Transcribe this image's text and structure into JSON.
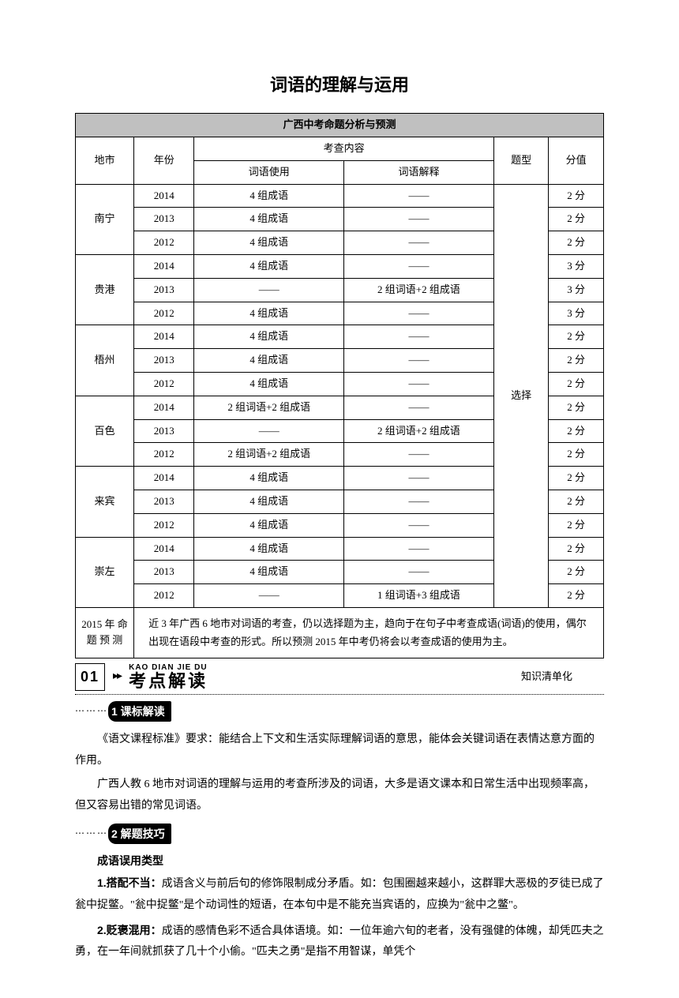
{
  "page_title": "词语的理解与运用",
  "table": {
    "caption": "广西中考命题分析与预测",
    "col_headers": {
      "city": "地市",
      "year": "年份",
      "content": "考查内容",
      "usage": "词语使用",
      "explain": "词语解释",
      "qtype": "题型",
      "score": "分值"
    },
    "qtype_merged": "选择",
    "cities": [
      {
        "name": "南宁",
        "rows": [
          {
            "year": "2014",
            "usage": "4 组成语",
            "explain": "——",
            "score": "2 分"
          },
          {
            "year": "2013",
            "usage": "4 组成语",
            "explain": "——",
            "score": "2 分"
          },
          {
            "year": "2012",
            "usage": "4 组成语",
            "explain": "——",
            "score": "2 分"
          }
        ]
      },
      {
        "name": "贵港",
        "rows": [
          {
            "year": "2014",
            "usage": "4 组成语",
            "explain": "——",
            "score": "3 分"
          },
          {
            "year": "2013",
            "usage": "——",
            "explain": "2 组词语+2 组成语",
            "score": "3 分"
          },
          {
            "year": "2012",
            "usage": "4 组成语",
            "explain": "——",
            "score": "3 分"
          }
        ]
      },
      {
        "name": "梧州",
        "rows": [
          {
            "year": "2014",
            "usage": "4 组成语",
            "explain": "——",
            "score": "2 分"
          },
          {
            "year": "2013",
            "usage": "4 组成语",
            "explain": "——",
            "score": "2 分"
          },
          {
            "year": "2012",
            "usage": "4 组成语",
            "explain": "——",
            "score": "2 分"
          }
        ]
      },
      {
        "name": "百色",
        "rows": [
          {
            "year": "2014",
            "usage": "2 组词语+2 组成语",
            "explain": "——",
            "score": "2 分"
          },
          {
            "year": "2013",
            "usage": "——",
            "explain": "2 组词语+2 组成语",
            "score": "2 分"
          },
          {
            "year": "2012",
            "usage": "2 组词语+2 组成语",
            "explain": "——",
            "score": "2 分"
          }
        ]
      },
      {
        "name": "来宾",
        "rows": [
          {
            "year": "2014",
            "usage": "4 组成语",
            "explain": "——",
            "score": "2 分"
          },
          {
            "year": "2013",
            "usage": "4 组成语",
            "explain": "——",
            "score": "2 分"
          },
          {
            "year": "2012",
            "usage": "4 组成语",
            "explain": "——",
            "score": "2 分"
          }
        ]
      },
      {
        "name": "崇左",
        "rows": [
          {
            "year": "2014",
            "usage": "4 组成语",
            "explain": "——",
            "score": "2 分"
          },
          {
            "year": "2013",
            "usage": "4 组成语",
            "explain": "——",
            "score": "2 分"
          },
          {
            "year": "2012",
            "usage": "——",
            "explain": "1 组词语+3 组成语",
            "score": "2 分"
          }
        ]
      }
    ],
    "forecast_label": "2015 年 命 题 预 测",
    "forecast_text": "近 3 年广西 6 地市对词语的考查，仍以选择题为主，趋向于在句子中考查成语(词语)的使用，偶尔出现在语段中考查的形式。所以预测 2015 年中考仍将会以考查成语的使用为主。"
  },
  "section01": {
    "num": "01",
    "pinyin": "KAO DIAN JIE DU",
    "title": "考点解读",
    "right": "知识清单化"
  },
  "tags": {
    "t1": "1 课标解读",
    "t2": "2 解题技巧"
  },
  "body": {
    "p1": "《语文课程标准》要求：能结合上下文和生活实际理解词语的意思，能体会关键词语在表情达意方面的作用。",
    "p2": "广西人教 6 地市对词语的理解与运用的考查所涉及的词语，大多是语文课本和日常生活中出现频率高，但又容易出错的常见词语。",
    "h1": "成语误用类型",
    "i1_label": "1.搭配不当：",
    "i1_text": "成语含义与前后句的修饰限制成分矛盾。如：包围圈越来越小，这群罪大恶极的歹徒已成了瓮中捉鳖。\"瓮中捉鳖\"是个动词性的短语，在本句中是不能充当宾语的，应换为\"瓮中之鳖\"。",
    "i2_label": "2.贬褒混用：",
    "i2_text": "成语的感情色彩不适合具体语境。如：一位年逾六旬的老者，没有强健的体魄，却凭匹夫之勇，在一年间就抓获了几十个小偷。\"匹夫之勇\"是指不用智谋，单凭个"
  }
}
